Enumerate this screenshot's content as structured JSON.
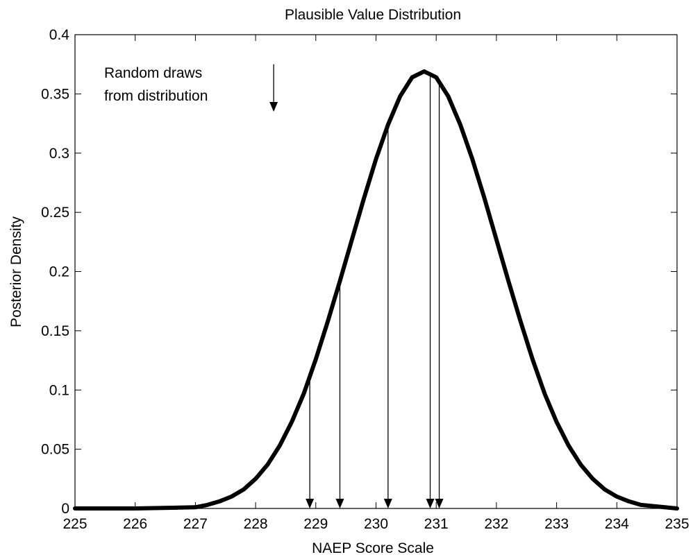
{
  "chart_data": {
    "type": "line",
    "title": "Plausible Value Distribution",
    "xlabel": "NAEP Score Scale",
    "ylabel": "Posterior Density",
    "xlim": [
      225,
      235
    ],
    "ylim": [
      0,
      0.4
    ],
    "x_ticks": [
      225,
      226,
      227,
      228,
      229,
      230,
      231,
      232,
      233,
      234,
      235
    ],
    "x_tick_labels": [
      "225",
      "226",
      "227",
      "228",
      "229",
      "230",
      "231",
      "232",
      "233",
      "234",
      "235"
    ],
    "y_ticks": [
      0,
      0.05,
      0.1,
      0.15,
      0.2,
      0.25,
      0.3,
      0.35,
      0.4
    ],
    "y_tick_labels": [
      "0",
      "0.05",
      "0.1",
      "0.15",
      "0.2",
      "0.25",
      "0.3",
      "0.35",
      "0.4"
    ],
    "grid": false,
    "series": [
      {
        "style": "thick-line",
        "x": [
          225,
          226,
          227,
          227.2,
          227.4,
          227.6,
          227.8,
          228,
          228.2,
          228.4,
          228.6,
          228.8,
          229,
          229.2,
          229.4,
          229.6,
          229.8,
          230,
          230.2,
          230.4,
          230.6,
          230.8,
          231,
          231.2,
          231.4,
          231.6,
          231.8,
          232,
          232.2,
          232.4,
          232.6,
          232.8,
          233,
          233.2,
          233.4,
          233.6,
          233.8,
          234,
          234.2,
          234.4,
          235
        ],
        "y": [
          0,
          0,
          0.001,
          0.003,
          0.006,
          0.01,
          0.016,
          0.025,
          0.037,
          0.053,
          0.073,
          0.097,
          0.126,
          0.158,
          0.192,
          0.227,
          0.262,
          0.295,
          0.324,
          0.348,
          0.364,
          0.369,
          0.364,
          0.348,
          0.324,
          0.295,
          0.262,
          0.227,
          0.192,
          0.158,
          0.126,
          0.097,
          0.073,
          0.053,
          0.037,
          0.025,
          0.016,
          0.01,
          0.006,
          0.003,
          0
        ]
      }
    ],
    "draws": [
      228.9,
      229.4,
      230.2,
      230.9,
      231.05
    ],
    "annotation": {
      "lines": [
        "Random draws",
        "from distribution"
      ],
      "arrow_x": 228.3,
      "arrow_y_top": 0.375,
      "arrow_y_bottom": 0.335
    }
  }
}
